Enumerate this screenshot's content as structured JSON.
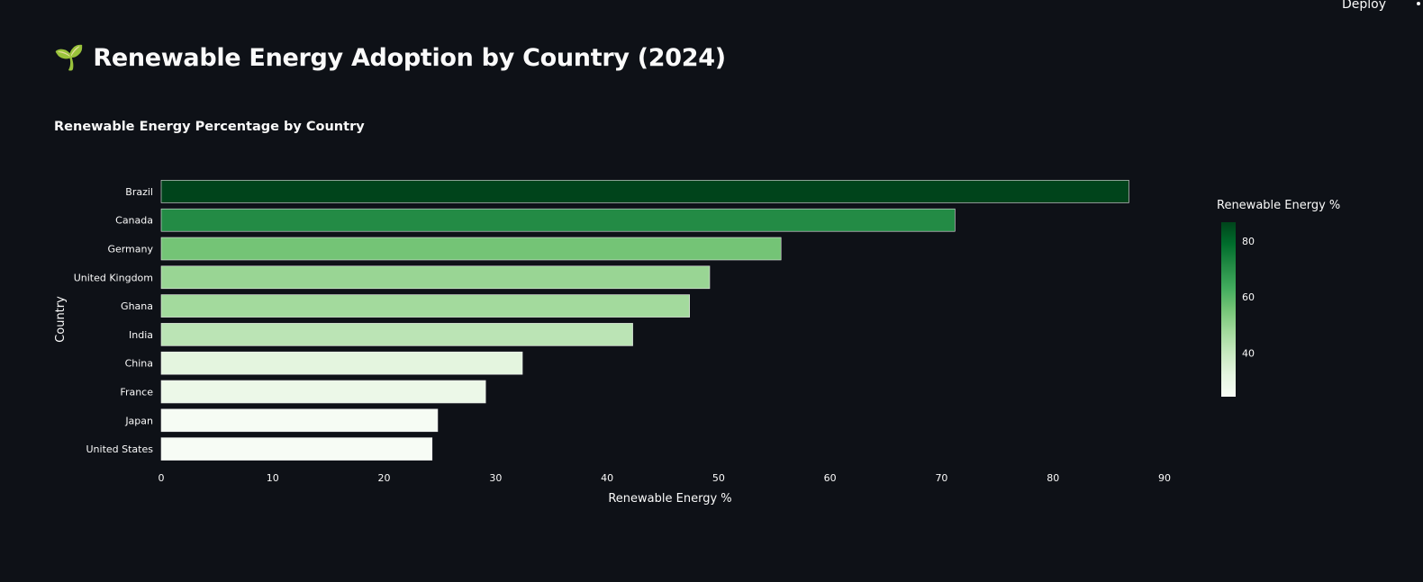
{
  "header": {
    "deploy_label": "Deploy"
  },
  "page": {
    "title": "Renewable Energy Adoption by Country (2024)",
    "icon": "seedling-icon"
  },
  "chart_data": {
    "type": "bar",
    "orientation": "horizontal",
    "title": "Renewable Energy Percentage by Country",
    "xlabel": "Renewable Energy %",
    "ylabel": "Country",
    "categories": [
      "Brazil",
      "Canada",
      "Germany",
      "United Kingdom",
      "Ghana",
      "India",
      "China",
      "France",
      "Japan",
      "United States"
    ],
    "values": [
      86.8,
      71.2,
      55.6,
      49.2,
      47.4,
      42.3,
      32.4,
      29.1,
      24.8,
      24.3
    ],
    "xlim": [
      0,
      90
    ],
    "xticks": [
      0,
      10,
      20,
      30,
      40,
      50,
      60,
      70,
      80,
      90
    ],
    "grid": false,
    "colorscale": [
      "#f7fcf5",
      "#e5f5e0",
      "#c7e9c0",
      "#a1d99b",
      "#74c476",
      "#41ab5d",
      "#238b45",
      "#006d2c",
      "#00441b"
    ],
    "colorbar": {
      "title": "Renewable Energy %",
      "ticks": [
        40,
        60,
        80
      ],
      "range": [
        24.3,
        86.8
      ],
      "placement": "right"
    }
  }
}
